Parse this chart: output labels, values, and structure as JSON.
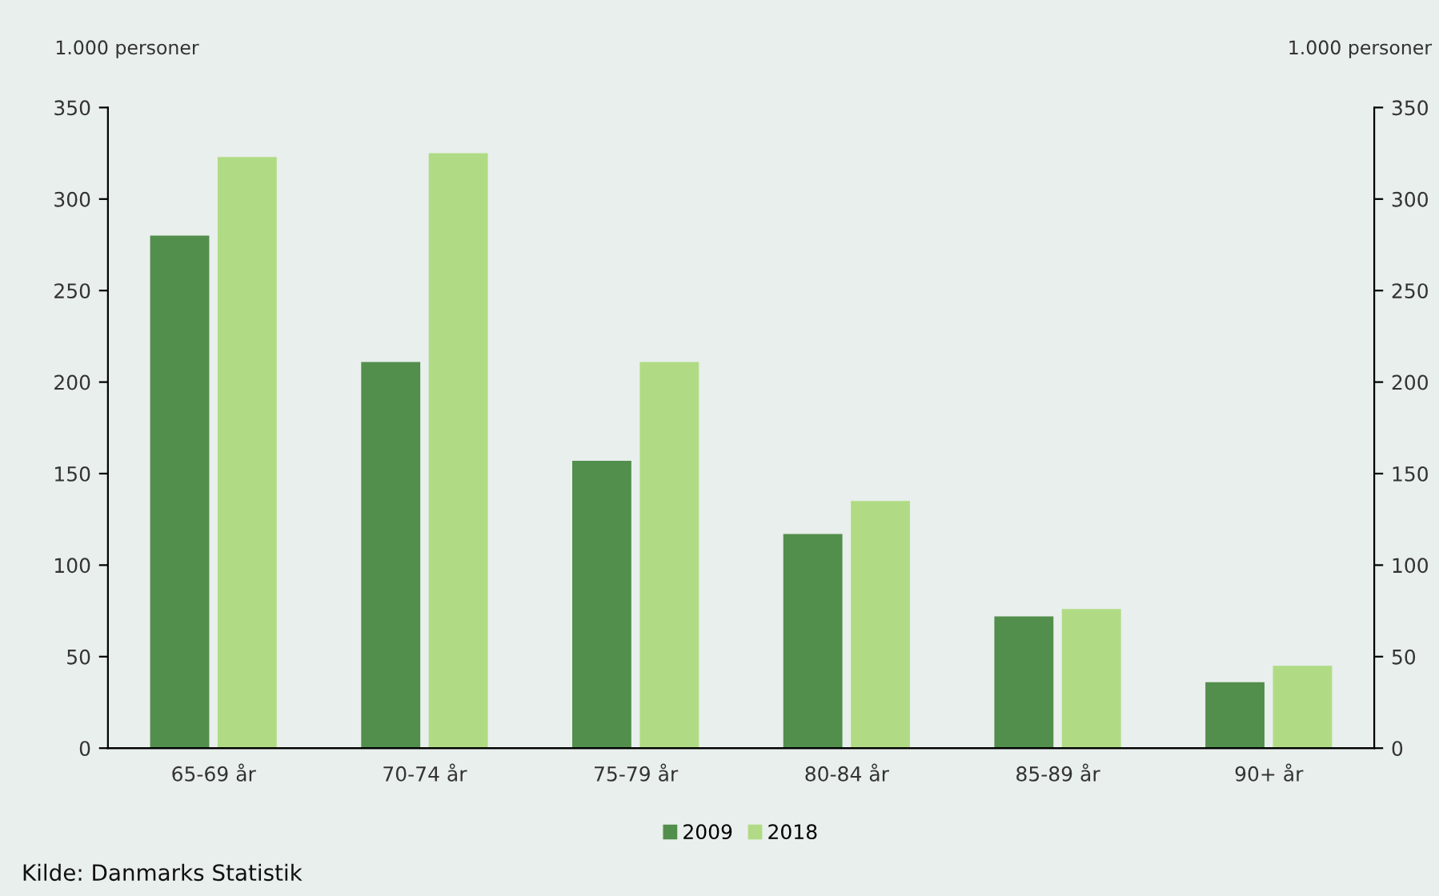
{
  "chart_data": {
    "type": "bar",
    "ylabel": "1.000 personer",
    "y2label": "1.000 personer",
    "categories": [
      "65-69 år",
      "70-74 år",
      "75-79 år",
      "80-84 år",
      "85-89 år",
      "90+ år"
    ],
    "series": [
      {
        "name": "2009",
        "color": "#528e4c",
        "values": [
          280,
          211,
          157,
          117,
          72,
          36
        ]
      },
      {
        "name": "2018",
        "color": "#b0db84",
        "values": [
          323,
          325,
          211,
          135,
          76,
          45
        ]
      }
    ],
    "ylim": [
      0,
      350
    ],
    "yticks": [
      0,
      50,
      100,
      150,
      200,
      250,
      300,
      350
    ],
    "y2lim": [
      0,
      350
    ],
    "y2ticks": [
      0,
      50,
      100,
      150,
      200,
      250,
      300,
      350
    ],
    "grid": false,
    "legend": "bottom",
    "annotations": [
      "Kilde: Danmarks Statistik"
    ]
  }
}
